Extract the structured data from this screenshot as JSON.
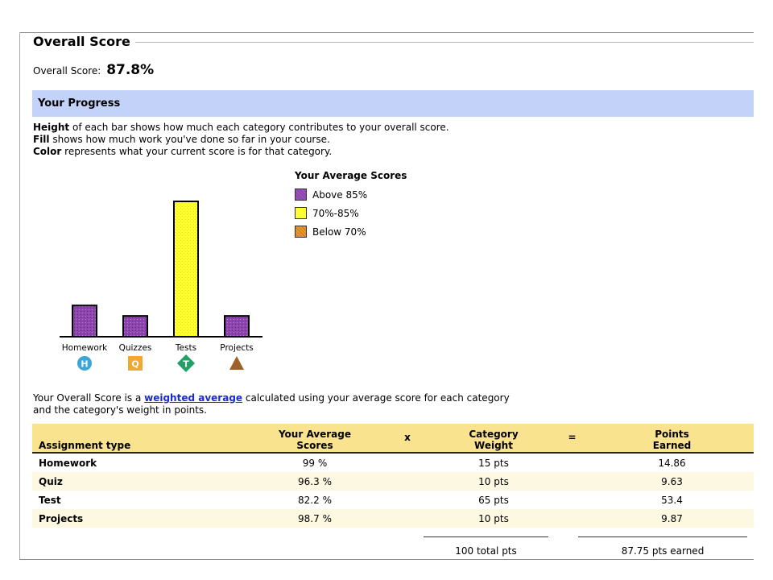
{
  "header": {
    "title": "Overall Score",
    "overall_label": "Overall Score:",
    "overall_value": "87.8%"
  },
  "progress": {
    "title": "Your Progress",
    "line1_bold": "Height",
    "line1_rest": " of each bar shows how much each category contributes to your overall score.",
    "line2_bold": "Fill",
    "line2_rest": " shows how much work you've done so far in your course.",
    "line3_bold": "Color",
    "line3_rest": " represents what your current score is for that category."
  },
  "legend": {
    "title": "Your Average Scores",
    "items": [
      {
        "label": "Above 85%",
        "color": "#8e44ad"
      },
      {
        "label": "70%-85%",
        "color": "#ffff33"
      },
      {
        "label": "Below 70%",
        "color": "#e59a2e"
      }
    ]
  },
  "chart_data": {
    "type": "bar",
    "categories": [
      "Homework",
      "Quizzes",
      "Tests",
      "Projects"
    ],
    "values": [
      15,
      10,
      65,
      10
    ],
    "colors": [
      "#8e44ad",
      "#8e44ad",
      "#ffff33",
      "#8e44ad"
    ],
    "icons": [
      {
        "letter": "H",
        "shape": "circle",
        "color": "#3aa7d6"
      },
      {
        "letter": "Q",
        "shape": "square",
        "color": "#f0a830"
      },
      {
        "letter": "T",
        "shape": "diamond",
        "color": "#23a066"
      },
      {
        "letter": "",
        "shape": "triangle",
        "color": "#a0602a"
      }
    ],
    "ylim": [
      0,
      65
    ]
  },
  "explain": {
    "pre": "Your Overall Score is a ",
    "link": "weighted average",
    "post": " calculated using your average score for each category",
    "line2": "and the category's weight in points."
  },
  "table": {
    "headers": {
      "type": "Assignment type",
      "avg_1": "Your Average",
      "avg_2": "Scores",
      "times": "x",
      "weight_1": "Category",
      "weight_2": "Weight",
      "equals": "=",
      "points_1": "Points",
      "points_2": "Earned"
    },
    "rows": [
      {
        "name": "Homework",
        "avg": "99 %",
        "weight": "15 pts",
        "points": "14.86"
      },
      {
        "name": "Quiz",
        "avg": "96.3 %",
        "weight": "10 pts",
        "points": "9.63"
      },
      {
        "name": "Test",
        "avg": "82.2 %",
        "weight": "65 pts",
        "points": "53.4"
      },
      {
        "name": "Projects",
        "avg": "98.7 %",
        "weight": "10 pts",
        "points": "9.87"
      }
    ],
    "total_weight": "100 total pts",
    "total_points": "87.75 pts earned"
  }
}
